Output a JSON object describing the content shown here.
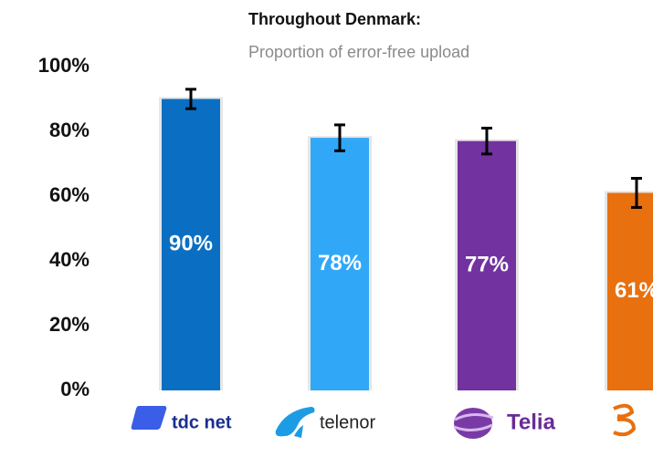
{
  "chart_data": {
    "type": "bar",
    "title": "Throughout Denmark:",
    "subtitle": "Proportion of error-free upload",
    "categories": [
      "tdc net",
      "telenor",
      "Telia",
      null
    ],
    "values": [
      90,
      78,
      77,
      61
    ],
    "value_labels": [
      "90%",
      "78%",
      "77%",
      "61%"
    ],
    "errors": [
      3,
      4,
      4,
      4.5
    ],
    "colors": [
      "#0a6fc2",
      "#31a8f7",
      "#7232a0",
      "#e8700f"
    ],
    "ylim": [
      0,
      100
    ],
    "yticks": [
      {
        "value": 0,
        "label": "0%"
      },
      {
        "value": 20,
        "label": "20%"
      },
      {
        "value": 40,
        "label": "40%"
      },
      {
        "value": 60,
        "label": "60%"
      },
      {
        "value": 80,
        "label": "80%"
      },
      {
        "value": 100,
        "label": "100%"
      }
    ],
    "grid": false
  }
}
